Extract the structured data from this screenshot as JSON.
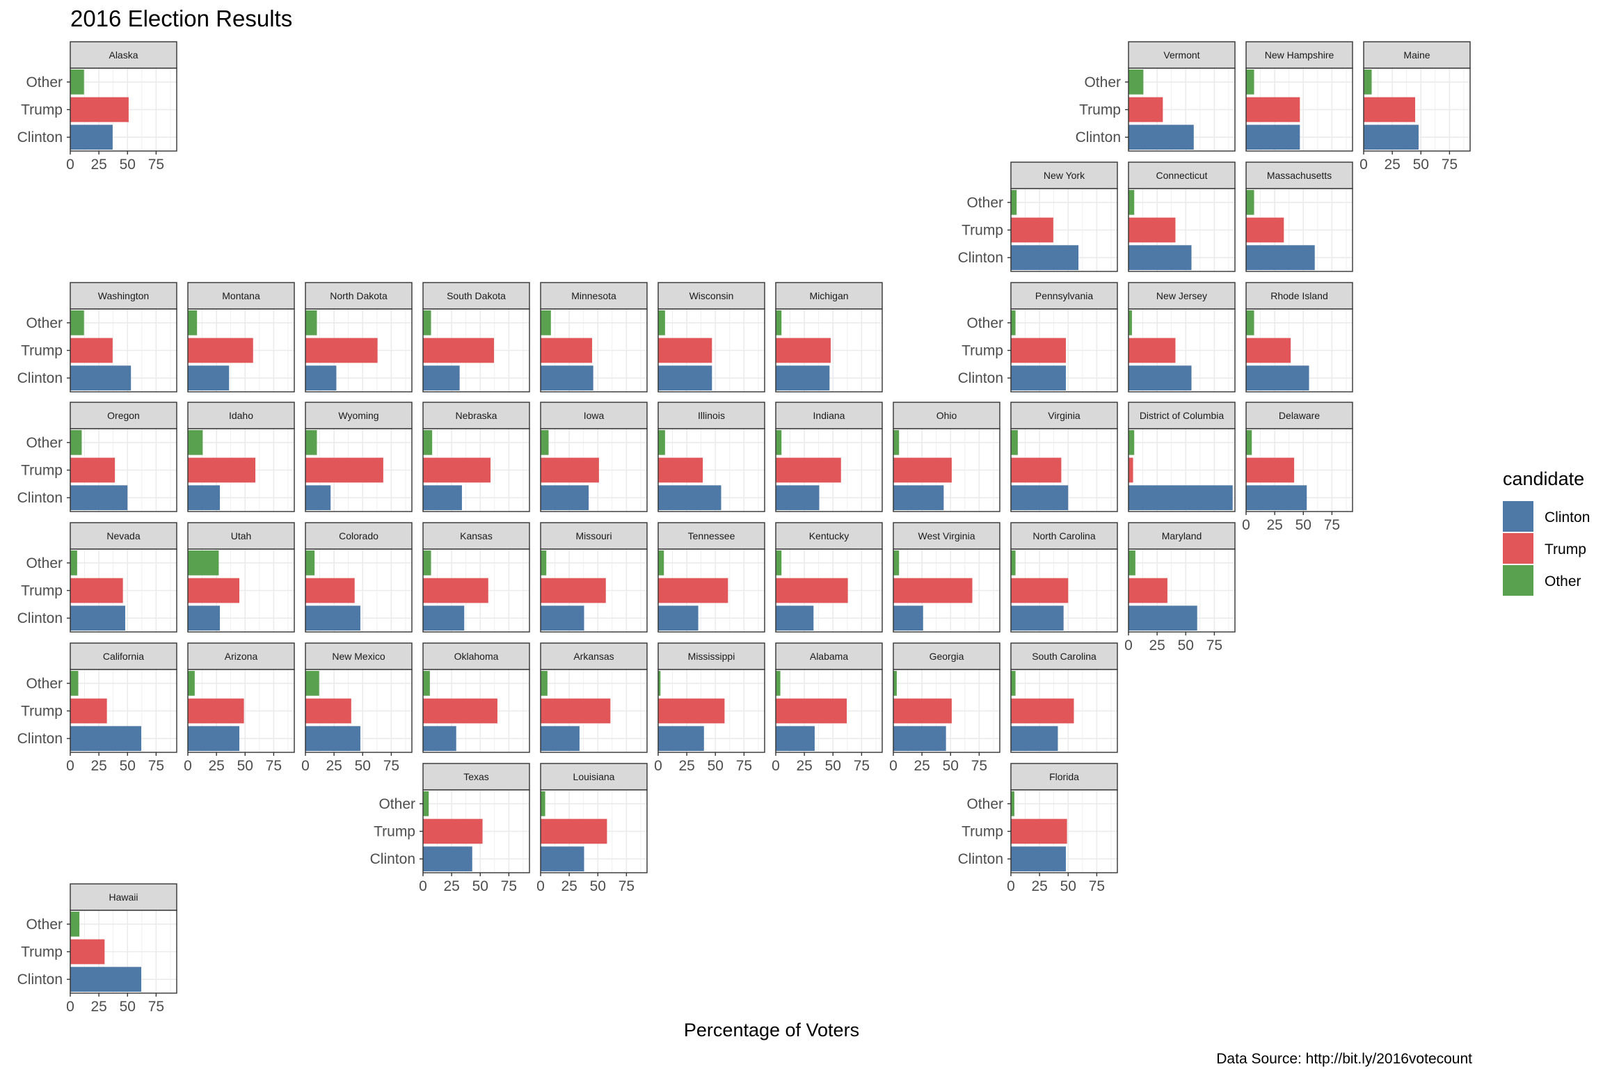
{
  "chart_data": {
    "type": "bar",
    "title": "2016 Election Results",
    "xlabel": "Percentage of Voters",
    "caption": "Data Source: http://bit.ly/2016votecount",
    "xlim": [
      0,
      93
    ],
    "xticks": [
      0,
      25,
      50,
      75
    ],
    "categories": [
      "Other",
      "Trump",
      "Clinton"
    ],
    "legend": {
      "title": "candidate",
      "position": "right",
      "entries": [
        {
          "name": "Clinton",
          "color": "#4e79a7"
        },
        {
          "name": "Trump",
          "color": "#e15759"
        },
        {
          "name": "Other",
          "color": "#59a14f"
        }
      ]
    },
    "colors": {
      "Clinton": "#4e79a7",
      "Trump": "#e15759",
      "Other": "#59a14f"
    },
    "grid": true,
    "panels": [
      {
        "state": "Alaska",
        "clinton": 37,
        "trump": 51,
        "other": 12
      },
      {
        "state": "Vermont",
        "clinton": 57,
        "trump": 30,
        "other": 13
      },
      {
        "state": "New Hampshire",
        "clinton": 47,
        "trump": 47,
        "other": 7
      },
      {
        "state": "Maine",
        "clinton": 48,
        "trump": 45,
        "other": 7
      },
      {
        "state": "New York",
        "clinton": 59,
        "trump": 37,
        "other": 5
      },
      {
        "state": "Connecticut",
        "clinton": 55,
        "trump": 41,
        "other": 5
      },
      {
        "state": "Massachusetts",
        "clinton": 60,
        "trump": 33,
        "other": 7
      },
      {
        "state": "Washington",
        "clinton": 53,
        "trump": 37,
        "other": 12
      },
      {
        "state": "Montana",
        "clinton": 36,
        "trump": 57,
        "other": 8
      },
      {
        "state": "North Dakota",
        "clinton": 27,
        "trump": 63,
        "other": 10
      },
      {
        "state": "South Dakota",
        "clinton": 32,
        "trump": 62,
        "other": 7
      },
      {
        "state": "Minnesota",
        "clinton": 46,
        "trump": 45,
        "other": 9
      },
      {
        "state": "Wisconsin",
        "clinton": 47,
        "trump": 47,
        "other": 6
      },
      {
        "state": "Michigan",
        "clinton": 47,
        "trump": 48,
        "other": 5
      },
      {
        "state": "Pennsylvania",
        "clinton": 48,
        "trump": 48,
        "other": 4
      },
      {
        "state": "New Jersey",
        "clinton": 55,
        "trump": 41,
        "other": 3
      },
      {
        "state": "Rhode Island",
        "clinton": 55,
        "trump": 39,
        "other": 7
      },
      {
        "state": "Oregon",
        "clinton": 50,
        "trump": 39,
        "other": 10
      },
      {
        "state": "Idaho",
        "clinton": 28,
        "trump": 59,
        "other": 13
      },
      {
        "state": "Wyoming",
        "clinton": 22,
        "trump": 68,
        "other": 10
      },
      {
        "state": "Nebraska",
        "clinton": 34,
        "trump": 59,
        "other": 8
      },
      {
        "state": "Iowa",
        "clinton": 42,
        "trump": 51,
        "other": 7
      },
      {
        "state": "Illinois",
        "clinton": 55,
        "trump": 39,
        "other": 6
      },
      {
        "state": "Indiana",
        "clinton": 38,
        "trump": 57,
        "other": 5
      },
      {
        "state": "Ohio",
        "clinton": 44,
        "trump": 51,
        "other": 5
      },
      {
        "state": "Virginia",
        "clinton": 50,
        "trump": 44,
        "other": 6
      },
      {
        "state": "District of Columbia",
        "clinton": 91,
        "trump": 4,
        "other": 5
      },
      {
        "state": "Delaware",
        "clinton": 53,
        "trump": 42,
        "other": 5
      },
      {
        "state": "Nevada",
        "clinton": 48,
        "trump": 46,
        "other": 6
      },
      {
        "state": "Utah",
        "clinton": 28,
        "trump": 45,
        "other": 27
      },
      {
        "state": "Colorado",
        "clinton": 48,
        "trump": 43,
        "other": 8
      },
      {
        "state": "Kansas",
        "clinton": 36,
        "trump": 57,
        "other": 7
      },
      {
        "state": "Missouri",
        "clinton": 38,
        "trump": 57,
        "other": 5
      },
      {
        "state": "Tennessee",
        "clinton": 35,
        "trump": 61,
        "other": 5
      },
      {
        "state": "Kentucky",
        "clinton": 33,
        "trump": 63,
        "other": 5
      },
      {
        "state": "West Virginia",
        "clinton": 26,
        "trump": 69,
        "other": 5
      },
      {
        "state": "North Carolina",
        "clinton": 46,
        "trump": 50,
        "other": 4
      },
      {
        "state": "Maryland",
        "clinton": 60,
        "trump": 34,
        "other": 6
      },
      {
        "state": "California",
        "clinton": 62,
        "trump": 32,
        "other": 7
      },
      {
        "state": "Arizona",
        "clinton": 45,
        "trump": 49,
        "other": 6
      },
      {
        "state": "New Mexico",
        "clinton": 48,
        "trump": 40,
        "other": 12
      },
      {
        "state": "Oklahoma",
        "clinton": 29,
        "trump": 65,
        "other": 6
      },
      {
        "state": "Arkansas",
        "clinton": 34,
        "trump": 61,
        "other": 6
      },
      {
        "state": "Mississippi",
        "clinton": 40,
        "trump": 58,
        "other": 2
      },
      {
        "state": "Alabama",
        "clinton": 34,
        "trump": 62,
        "other": 4
      },
      {
        "state": "Georgia",
        "clinton": 46,
        "trump": 51,
        "other": 3
      },
      {
        "state": "South Carolina",
        "clinton": 41,
        "trump": 55,
        "other": 4
      },
      {
        "state": "Texas",
        "clinton": 43,
        "trump": 52,
        "other": 5
      },
      {
        "state": "Louisiana",
        "clinton": 38,
        "trump": 58,
        "other": 4
      },
      {
        "state": "Florida",
        "clinton": 48,
        "trump": 49,
        "other": 3
      },
      {
        "state": "Hawaii",
        "clinton": 62,
        "trump": 30,
        "other": 8
      }
    ]
  }
}
